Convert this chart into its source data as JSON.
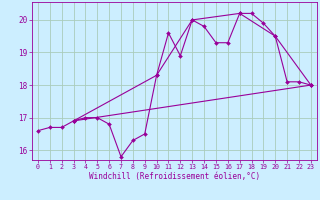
{
  "xlabel": "Windchill (Refroidissement éolien,°C)",
  "bg_color": "#cceeff",
  "line_color": "#990099",
  "grid_color": "#aaccbb",
  "xlim": [
    -0.5,
    23.5
  ],
  "ylim": [
    15.7,
    20.55
  ],
  "yticks": [
    16,
    17,
    18,
    19,
    20
  ],
  "xticks": [
    0,
    1,
    2,
    3,
    4,
    5,
    6,
    7,
    8,
    9,
    10,
    11,
    12,
    13,
    14,
    15,
    16,
    17,
    18,
    19,
    20,
    21,
    22,
    23
  ],
  "series": [
    {
      "x": [
        0,
        1,
        2,
        3,
        4,
        5,
        6,
        7,
        8,
        9,
        10,
        11,
        12,
        13,
        14,
        15,
        16,
        17,
        18,
        19,
        20,
        21,
        22,
        23
      ],
      "y": [
        16.6,
        16.7,
        16.7,
        16.9,
        17.0,
        17.0,
        16.8,
        15.8,
        16.3,
        16.5,
        18.3,
        19.6,
        18.9,
        20.0,
        19.8,
        19.3,
        19.3,
        20.2,
        20.2,
        19.9,
        19.5,
        18.1,
        18.1,
        18.0
      ],
      "linewidth": 0.8,
      "markersize": 2.0
    },
    {
      "x": [
        3,
        10,
        13,
        17,
        20,
        23
      ],
      "y": [
        16.9,
        18.3,
        20.0,
        20.2,
        19.5,
        18.0
      ],
      "linewidth": 0.8,
      "markersize": 2.0
    },
    {
      "x": [
        3,
        23
      ],
      "y": [
        16.9,
        18.0
      ],
      "linewidth": 0.8,
      "markersize": 2.0
    }
  ]
}
